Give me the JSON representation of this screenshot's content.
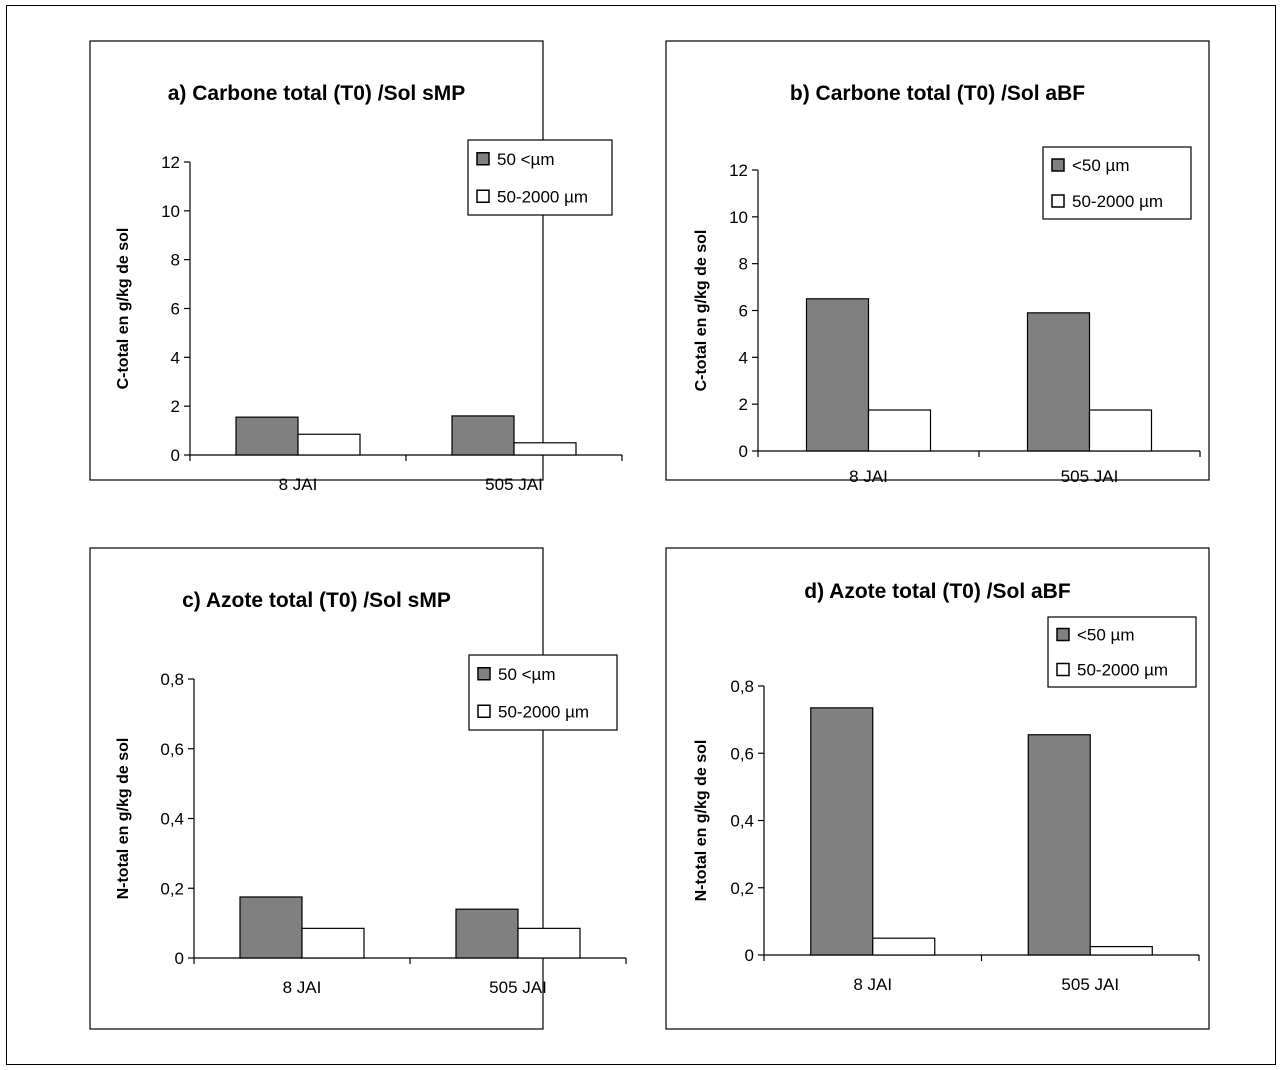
{
  "chart_data": [
    {
      "type": "bar",
      "title": "a) Carbone total (T0) /Sol sMP",
      "ylabel": "C-total en g/kg de sol",
      "xlabel": "",
      "categories": [
        "8 JAI",
        "505 JAI"
      ],
      "ylim": [
        0,
        12
      ],
      "yticks": [
        0,
        2,
        4,
        6,
        8,
        10,
        12
      ],
      "ytick_labels": [
        "0",
        "2",
        "4",
        "6",
        "8",
        "10",
        "12"
      ],
      "legend_position": "top-right",
      "series": [
        {
          "name": "50 <µm",
          "values": [
            1.55,
            1.6
          ],
          "color": "#808080"
        },
        {
          "name": "50-2000 µm",
          "values": [
            0.85,
            0.5
          ],
          "color": "#ffffff"
        }
      ]
    },
    {
      "type": "bar",
      "title": "b) Carbone total (T0) /Sol aBF",
      "ylabel": "C-total en g/kg de sol",
      "xlabel": "",
      "categories": [
        "8 JAI",
        "505 JAI"
      ],
      "ylim": [
        0,
        12
      ],
      "yticks": [
        0,
        2,
        4,
        6,
        8,
        10,
        12
      ],
      "ytick_labels": [
        "0",
        "2",
        "4",
        "6",
        "8",
        "10",
        "12"
      ],
      "legend_position": "top-right",
      "series": [
        {
          "name": "<50 µm",
          "values": [
            6.5,
            5.9
          ],
          "color": "#808080"
        },
        {
          "name": "50-2000 µm",
          "values": [
            1.75,
            1.75
          ],
          "color": "#ffffff"
        }
      ]
    },
    {
      "type": "bar",
      "title": "c) Azote total (T0) /Sol sMP",
      "ylabel": "N-total en g/kg de sol",
      "xlabel": "",
      "categories": [
        "8 JAI",
        "505 JAI"
      ],
      "ylim": [
        0,
        0.8
      ],
      "yticks": [
        0,
        0.2,
        0.4,
        0.6,
        0.8
      ],
      "ytick_labels": [
        "0",
        "0,2",
        "0,4",
        "0,6",
        "0,8"
      ],
      "legend_position": "top-right",
      "series": [
        {
          "name": "50 <µm",
          "values": [
            0.175,
            0.14
          ],
          "color": "#808080"
        },
        {
          "name": "50-2000 µm",
          "values": [
            0.085,
            0.085
          ],
          "color": "#ffffff"
        }
      ]
    },
    {
      "type": "bar",
      "title": "d) Azote total (T0) /Sol aBF",
      "ylabel": "N-total en g/kg de sol",
      "xlabel": "",
      "categories": [
        "8 JAI",
        "505 JAI"
      ],
      "ylim": [
        0,
        0.8
      ],
      "yticks": [
        0,
        0.2,
        0.4,
        0.6,
        0.8
      ],
      "ytick_labels": [
        "0",
        "0,2",
        "0,4",
        "0,6",
        "0,8"
      ],
      "legend_position": "top-right",
      "series": [
        {
          "name": "<50 µm",
          "values": [
            0.735,
            0.655
          ],
          "color": "#808080"
        },
        {
          "name": "50-2000 µm",
          "values": [
            0.05,
            0.025
          ],
          "color": "#ffffff"
        }
      ]
    }
  ]
}
